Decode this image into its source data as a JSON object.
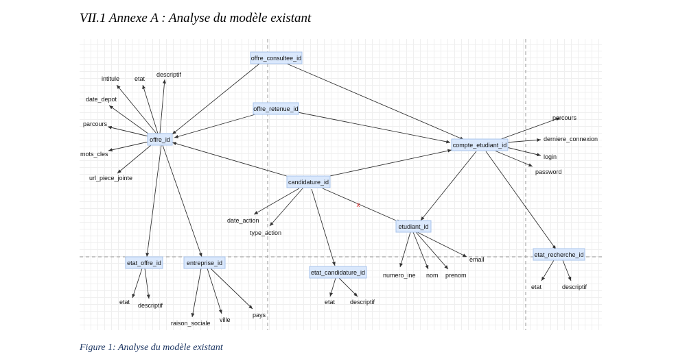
{
  "heading": "VII.1  Annexe A : Analyse du modèle existant",
  "caption": "Figure 1: Analyse du modèle existant",
  "diagram": {
    "nodes": {
      "offre_consultee": "offre_consultee_id",
      "offre_retenue": "offre_retenue_id",
      "offre": "offre_id",
      "compte_etudiant": "compte_etudiant_id",
      "candidature": "candidature_id",
      "etudiant": "etudiant_id",
      "etat_offre": "etat_offre_id",
      "entreprise": "entreprise_id",
      "etat_candidature": "etat_candidature_id",
      "etat_recherche": "etat_recherche_id"
    },
    "attributes": {
      "offre_intitule": "intitule",
      "offre_etat": "etat",
      "offre_descriptif": "descriptif",
      "offre_date_depot": "date_depot",
      "offre_parcours": "parcours",
      "offre_mots_cles": "mots_cles",
      "offre_url": "url_piece_jointe",
      "compte_parcours": "parcours",
      "compte_derniere_connexion": "derniere_connexion",
      "compte_login": "login",
      "compte_password": "password",
      "candidature_date_action": "date_action",
      "candidature_type_action": "type_action",
      "etudiant_email": "email",
      "etudiant_numero_ine": "numero_ine",
      "etudiant_nom": "nom",
      "etudiant_prenom": "prenom",
      "etat_offre_etat": "etat",
      "etat_offre_descriptif": "descriptif",
      "entreprise_raison_sociale": "raison_sociale",
      "entreprise_ville": "ville",
      "entreprise_pays": "pays",
      "etat_candidature_etat": "etat",
      "etat_candidature_descriptif": "descriptif",
      "etat_recherche_etat": "etat",
      "etat_recherche_descriptif": "descriptif"
    },
    "cross_mark": "x"
  }
}
